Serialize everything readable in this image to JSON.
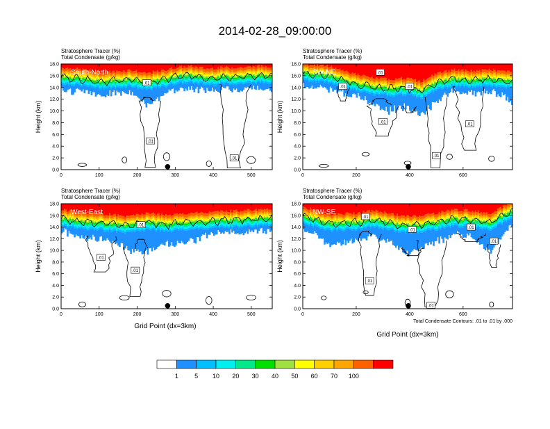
{
  "title": "2014-02-28_09:00:00",
  "panel_header": {
    "line1_left": "Stratosphere Tracer",
    "line1_unit": "(%)",
    "line2_left": "Total Condensate",
    "line2_unit": "(g/kg)"
  },
  "ylabel": "Height (km)",
  "xlabel": "Grid Point (dx=3km)",
  "contour_note": "Total Condensate Contours: .01 to .01 by .000",
  "contour_label": ".01",
  "colors": {
    "levels": [
      "#ffffff",
      "#1e90ff",
      "#00bfff",
      "#00f0f0",
      "#00e88a",
      "#00e000",
      "#a0e040",
      "#ffff00",
      "#ffd000",
      "#ffa500",
      "#ff6000",
      "#ff0000"
    ],
    "contour": "#000000"
  },
  "colorbar": {
    "tick_labels": [
      "1",
      "5",
      "10",
      "20",
      "30",
      "40",
      "50",
      "60",
      "70",
      "100"
    ]
  },
  "chart_data": [
    {
      "type": "contour",
      "panel_label": "South-North",
      "xlim": [
        0,
        555
      ],
      "ylim": [
        0,
        18
      ],
      "xticks": [
        0,
        100,
        200,
        300,
        400,
        500
      ],
      "yticks": [
        0.0,
        2.0,
        4.0,
        6.0,
        8.0,
        10.0,
        12.0,
        14.0,
        16.0,
        18.0
      ],
      "marker_x": 280,
      "tracer_top": [
        [
          0,
          14.6
        ],
        [
          60,
          14.2
        ],
        [
          100,
          13.8
        ],
        [
          140,
          13.9
        ],
        [
          180,
          14.2
        ],
        [
          220,
          13.6
        ],
        [
          260,
          14.0
        ],
        [
          300,
          14.6
        ],
        [
          340,
          14.8
        ],
        [
          380,
          14.4
        ],
        [
          420,
          14.6
        ],
        [
          470,
          14.6
        ],
        [
          520,
          14.8
        ],
        [
          555,
          14.8
        ]
      ],
      "blue_top": [
        [
          0,
          15.4
        ],
        [
          60,
          15.0
        ],
        [
          100,
          14.6
        ],
        [
          140,
          14.4
        ],
        [
          180,
          14.6
        ],
        [
          200,
          13.2
        ],
        [
          230,
          12.0
        ],
        [
          260,
          13.2
        ],
        [
          300,
          16.0
        ],
        [
          340,
          16.4
        ],
        [
          380,
          15.2
        ],
        [
          420,
          15.0
        ],
        [
          470,
          15.0
        ],
        [
          520,
          15.2
        ],
        [
          555,
          15.4
        ]
      ],
      "contour_labels": [
        [
          225,
          14.8
        ],
        [
          235,
          4.9
        ],
        [
          455,
          2.0
        ]
      ]
    },
    {
      "type": "contour",
      "panel_label": "SW-NE",
      "xlim": [
        0,
        785
      ],
      "ylim": [
        0,
        18
      ],
      "xticks": [
        0,
        200,
        400,
        600
      ],
      "yticks": [
        0.0,
        2.0,
        4.0,
        6.0,
        8.0,
        10.0,
        12.0,
        14.0,
        16.0,
        18.0
      ],
      "marker_x": 395,
      "tracer_top": [
        [
          0,
          15.2
        ],
        [
          100,
          14.8
        ],
        [
          200,
          13.4
        ],
        [
          260,
          12.8
        ],
        [
          320,
          12.6
        ],
        [
          380,
          12.8
        ],
        [
          440,
          12.2
        ],
        [
          500,
          13.6
        ],
        [
          560,
          14.2
        ],
        [
          620,
          14.0
        ],
        [
          700,
          14.2
        ],
        [
          785,
          13.8
        ]
      ],
      "blue_top": [
        [
          0,
          15.6
        ],
        [
          100,
          15.2
        ],
        [
          200,
          14.0
        ],
        [
          260,
          12.0
        ],
        [
          320,
          11.0
        ],
        [
          380,
          11.8
        ],
        [
          440,
          10.2
        ],
        [
          500,
          12.8
        ],
        [
          560,
          14.8
        ],
        [
          620,
          14.6
        ],
        [
          700,
          14.8
        ],
        [
          785,
          12.4
        ]
      ],
      "contour_labels": [
        [
          150,
          14.2
        ],
        [
          290,
          16.6
        ],
        [
          300,
          8.2
        ],
        [
          400,
          14.2
        ],
        [
          500,
          2.4
        ],
        [
          625,
          7.8
        ]
      ]
    },
    {
      "type": "contour",
      "panel_label": "West-East",
      "xlim": [
        0,
        555
      ],
      "ylim": [
        0,
        18
      ],
      "xticks": [
        0,
        100,
        200,
        300,
        400,
        500
      ],
      "yticks": [
        0.0,
        2.0,
        4.0,
        6.0,
        8.0,
        10.0,
        12.0,
        14.0,
        16.0,
        18.0
      ],
      "marker_x": 280,
      "tracer_top": [
        [
          0,
          14.2
        ],
        [
          60,
          13.6
        ],
        [
          120,
          13.4
        ],
        [
          180,
          13.0
        ],
        [
          220,
          13.6
        ],
        [
          280,
          13.2
        ],
        [
          340,
          13.6
        ],
        [
          400,
          13.8
        ],
        [
          460,
          14.0
        ],
        [
          520,
          14.2
        ],
        [
          555,
          14.4
        ]
      ],
      "blue_top": [
        [
          0,
          14.8
        ],
        [
          60,
          13.2
        ],
        [
          120,
          12.8
        ],
        [
          180,
          11.0
        ],
        [
          220,
          10.8
        ],
        [
          280,
          12.0
        ],
        [
          340,
          12.6
        ],
        [
          400,
          14.0
        ],
        [
          460,
          14.4
        ],
        [
          520,
          14.6
        ],
        [
          555,
          14.8
        ]
      ],
      "contour_labels": [
        [
          210,
          14.4
        ],
        [
          195,
          6.6
        ],
        [
          105,
          8.8
        ]
      ]
    },
    {
      "type": "contour",
      "panel_label": "NW-SE",
      "xlim": [
        0,
        785
      ],
      "ylim": [
        0,
        18
      ],
      "xticks": [
        0,
        200,
        400,
        600
      ],
      "yticks": [
        0.0,
        2.0,
        4.0,
        6.0,
        8.0,
        10.0,
        12.0,
        14.0,
        16.0,
        18.0
      ],
      "marker_x": 395,
      "tracer_top": [
        [
          0,
          14.6
        ],
        [
          100,
          13.4
        ],
        [
          200,
          13.6
        ],
        [
          260,
          14.0
        ],
        [
          320,
          13.6
        ],
        [
          380,
          13.0
        ],
        [
          440,
          13.2
        ],
        [
          500,
          13.6
        ],
        [
          560,
          14.2
        ],
        [
          620,
          14.0
        ],
        [
          700,
          13.6
        ],
        [
          785,
          15.6
        ]
      ],
      "blue_top": [
        [
          0,
          15.0
        ],
        [
          100,
          12.0
        ],
        [
          200,
          12.6
        ],
        [
          260,
          13.4
        ],
        [
          320,
          12.4
        ],
        [
          380,
          10.4
        ],
        [
          440,
          11.4
        ],
        [
          500,
          12.6
        ],
        [
          560,
          13.6
        ],
        [
          620,
          13.8
        ],
        [
          700,
          10.6
        ],
        [
          785,
          15.8
        ]
      ],
      "contour_labels": [
        [
          235,
          15.8
        ],
        [
          410,
          13.6
        ],
        [
          630,
          14.0
        ],
        [
          715,
          11.6
        ],
        [
          250,
          4.8
        ],
        [
          480,
          0.6
        ]
      ]
    }
  ]
}
